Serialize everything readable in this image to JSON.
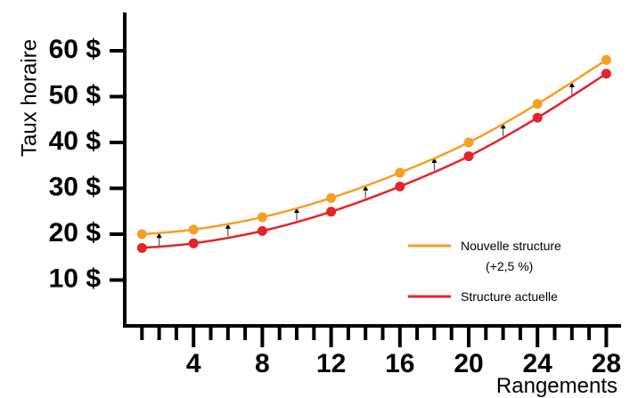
{
  "chart_data": {
    "type": "line",
    "xlabel": "Rangements",
    "ylabel": "Taux horaire",
    "x_tick_labels": [
      "4",
      "8",
      "12",
      "16",
      "20",
      "24",
      "28"
    ],
    "y_tick_labels": [
      "10 $",
      "20 $",
      "30 $",
      "40 $",
      "50 $",
      "60 $"
    ],
    "xlim": [
      0,
      28
    ],
    "ylim": [
      0,
      68
    ],
    "x": [
      1,
      4,
      8,
      12,
      16,
      20,
      24,
      28
    ],
    "series": [
      {
        "name": "Nouvelle structure",
        "name_line2": "(+2,5 %)",
        "color": "#F5A023",
        "values": [
          20,
          21,
          23.7,
          27.9,
          33.4,
          40,
          48.4,
          58
        ]
      },
      {
        "name": "Structure actuelle",
        "color": "#E3242B",
        "values": [
          17,
          18,
          20.7,
          24.9,
          30.4,
          37,
          45.4,
          55
        ]
      }
    ],
    "arrows_x": [
      2,
      6,
      10,
      14,
      18,
      22,
      26
    ],
    "legend_position": "bottom-right",
    "grid": false
  }
}
